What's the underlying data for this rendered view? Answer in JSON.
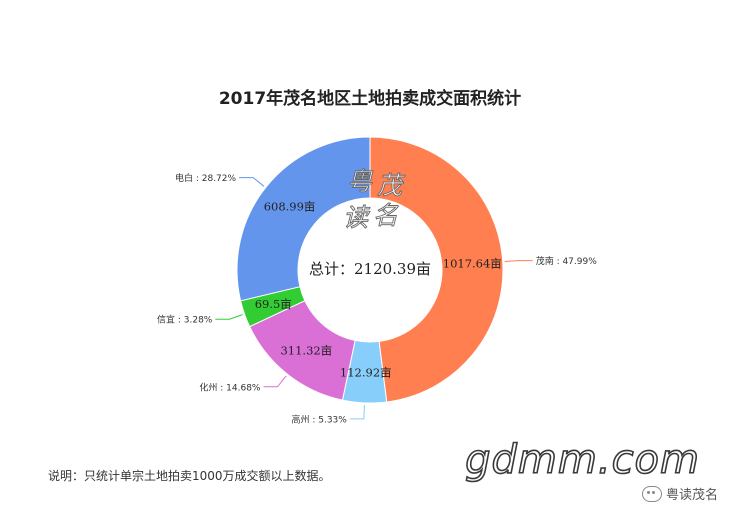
{
  "chart_data": {
    "type": "pie",
    "variant": "donut",
    "title": "2017年茂名地区土地拍卖成交面积统计",
    "center_label": "总计：2120.39亩",
    "start_angle_deg": 0,
    "direction": "clockwise",
    "slices": [
      {
        "name": "茂南",
        "value": 1017.64,
        "value_label": "1017.64亩",
        "percent_label": "茂南 : 47.99%",
        "color": "#FF7F50"
      },
      {
        "name": "高州",
        "value": 112.92,
        "value_label": "112.92亩",
        "percent_label": "高州 : 5.33%",
        "color": "#87CEFA"
      },
      {
        "name": "化州",
        "value": 311.32,
        "value_label": "311.32亩",
        "percent_label": "化州 : 14.68%",
        "color": "#DA70D6"
      },
      {
        "name": "信宜",
        "value": 69.5,
        "value_label": "69.5亩",
        "percent_label": "信宜 : 3.28%",
        "color": "#32CD32"
      },
      {
        "name": "电白",
        "value": 608.99,
        "value_label": "608.99亩",
        "percent_label": "电白 : 28.72%",
        "color": "#6495ED"
      }
    ]
  },
  "logo": {
    "char1": "粤",
    "char2": "茂",
    "char3": "读",
    "char4": "名"
  },
  "note": "说明：只统计单宗土地拍卖1000万成交额以上数据。",
  "watermark": "gdmm.com",
  "brand": {
    "name": "粤读茂名",
    "icon": "wechat-icon"
  }
}
